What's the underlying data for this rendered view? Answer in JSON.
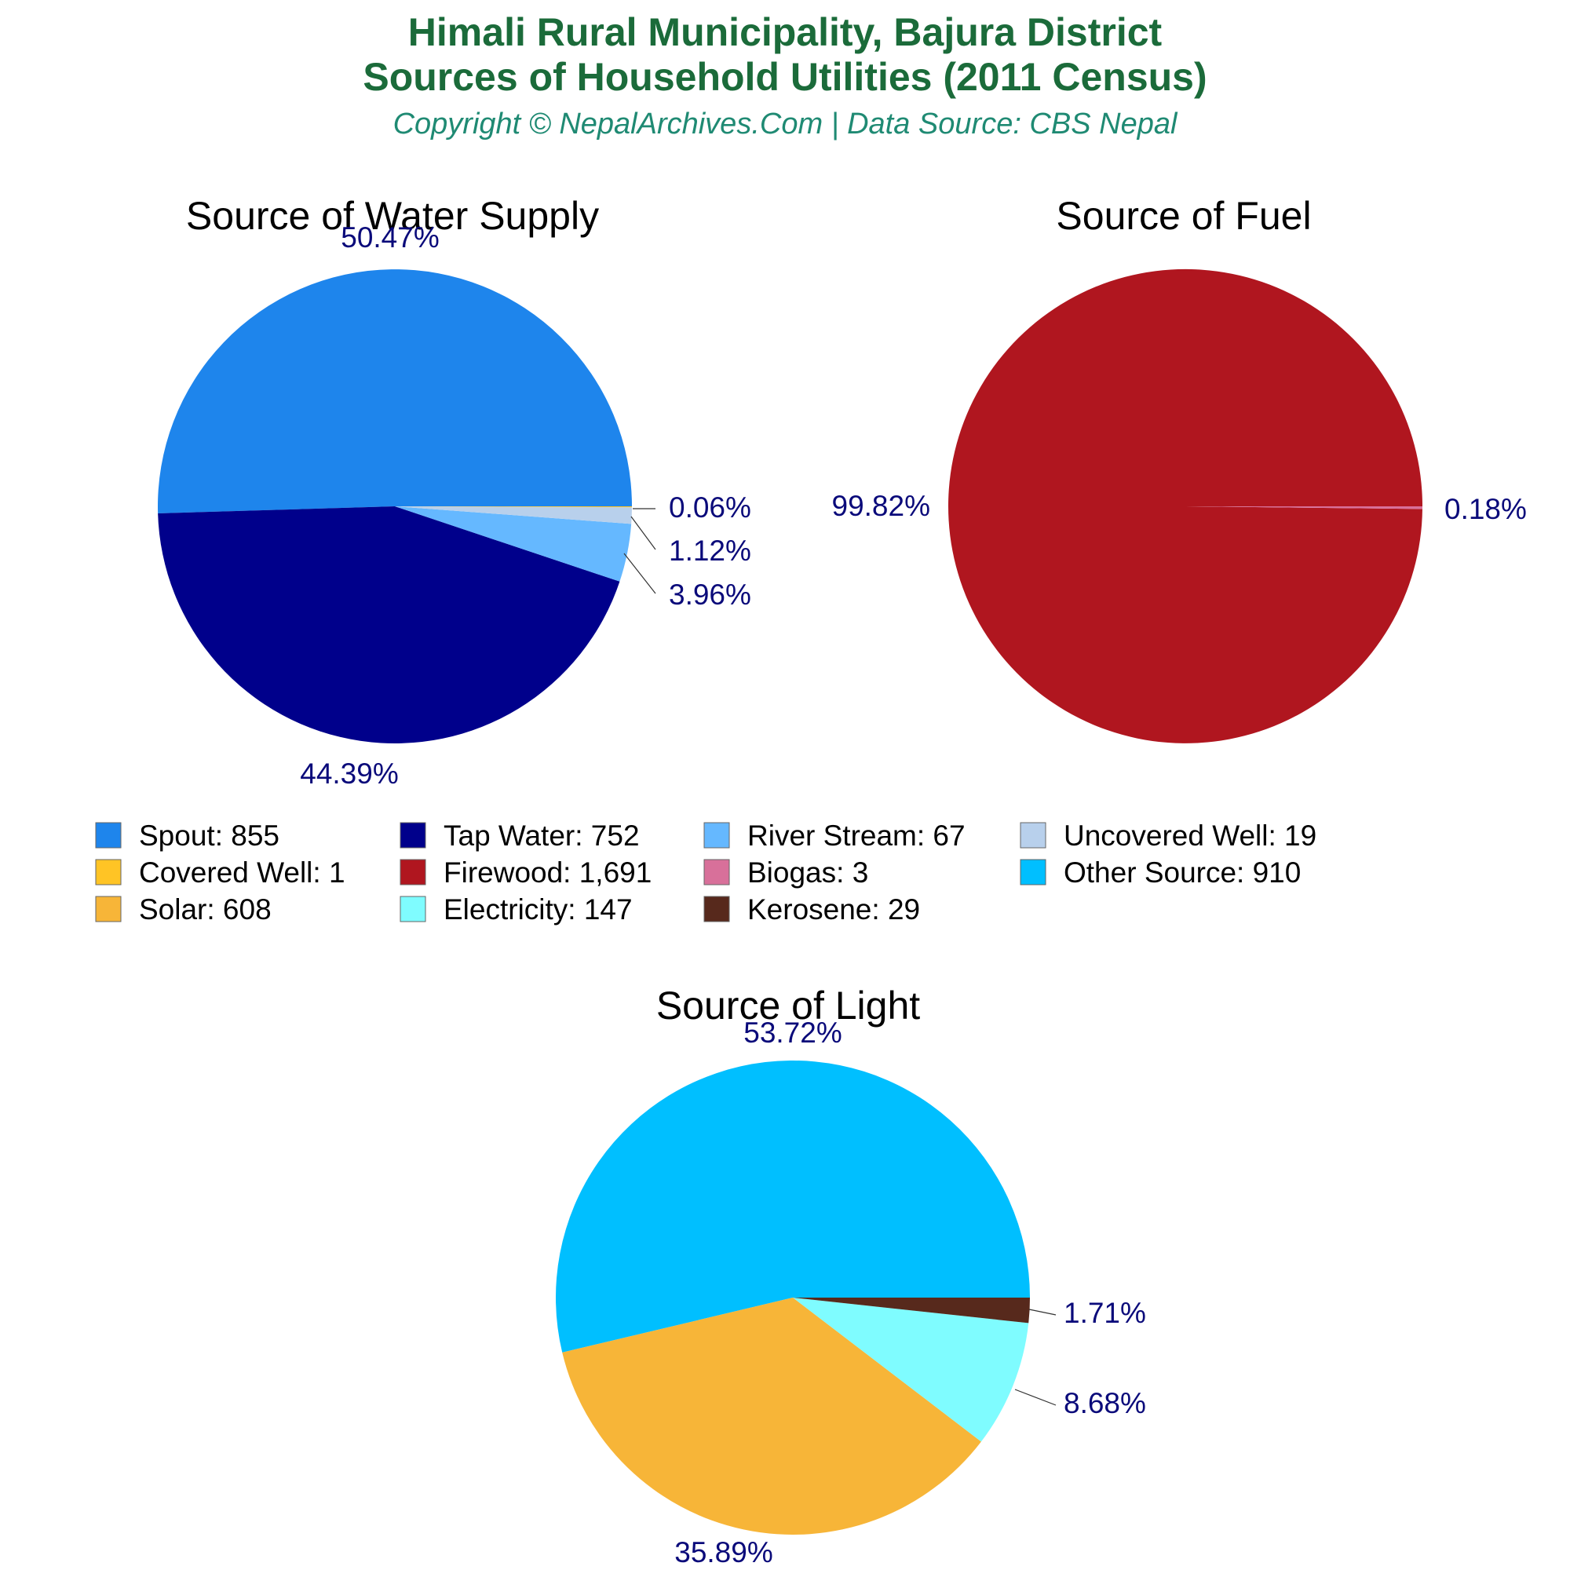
{
  "title_line1": "Himali Rural Municipality, Bajura District",
  "title_line2": "Sources of Household Utilities (2011 Census)",
  "subtitle": "Copyright © NepalArchives.Com | Data Source: CBS Nepal",
  "chart_data": [
    {
      "type": "pie",
      "title": "Source of Water Supply",
      "slices": [
        {
          "label": "Spout",
          "value": 855,
          "percent_label": "50.47%",
          "color": "#1e85ec"
        },
        {
          "label": "Tap Water",
          "value": 752,
          "percent_label": "44.39%",
          "color": "#00008b"
        },
        {
          "label": "River Stream",
          "value": 67,
          "percent_label": "3.96%",
          "color": "#65b8ff"
        },
        {
          "label": "Uncovered Well",
          "value": 19,
          "percent_label": "1.12%",
          "color": "#b8d0ec"
        },
        {
          "label": "Covered Well",
          "value": 1,
          "percent_label": "0.06%",
          "color": "#ffc425"
        }
      ]
    },
    {
      "type": "pie",
      "title": "Source of Fuel",
      "slices": [
        {
          "label": "Firewood",
          "value": 1691,
          "percent_label": "99.82%",
          "color": "#b0161f"
        },
        {
          "label": "Biogas",
          "value": 3,
          "percent_label": "0.18%",
          "color": "#d8709a"
        }
      ]
    },
    {
      "type": "pie",
      "title": "Source of Light",
      "slices": [
        {
          "label": "Other Source",
          "value": 910,
          "percent_label": "53.72%",
          "color": "#00bfff"
        },
        {
          "label": "Solar",
          "value": 608,
          "percent_label": "35.89%",
          "color": "#f7b538"
        },
        {
          "label": "Electricity",
          "value": 147,
          "percent_label": "8.68%",
          "color": "#7ffcff"
        },
        {
          "label": "Kerosene",
          "value": 29,
          "percent_label": "1.71%",
          "color": "#57291c"
        }
      ]
    }
  ],
  "legend": [
    {
      "label": "Spout: 855",
      "color": "#1e85ec"
    },
    {
      "label": "Tap Water: 752",
      "color": "#00008b"
    },
    {
      "label": "River Stream: 67",
      "color": "#65b8ff"
    },
    {
      "label": "Uncovered Well: 19",
      "color": "#b8d0ec"
    },
    {
      "label": "Covered Well: 1",
      "color": "#ffc425"
    },
    {
      "label": "Firewood: 1,691",
      "color": "#b0161f"
    },
    {
      "label": "Biogas: 3",
      "color": "#d8709a"
    },
    {
      "label": "Other Source: 910",
      "color": "#00bfff"
    },
    {
      "label": "Solar: 608",
      "color": "#f7b538"
    },
    {
      "label": "Electricity: 147",
      "color": "#7ffcff"
    },
    {
      "label": "Kerosene: 29",
      "color": "#57291c"
    }
  ]
}
